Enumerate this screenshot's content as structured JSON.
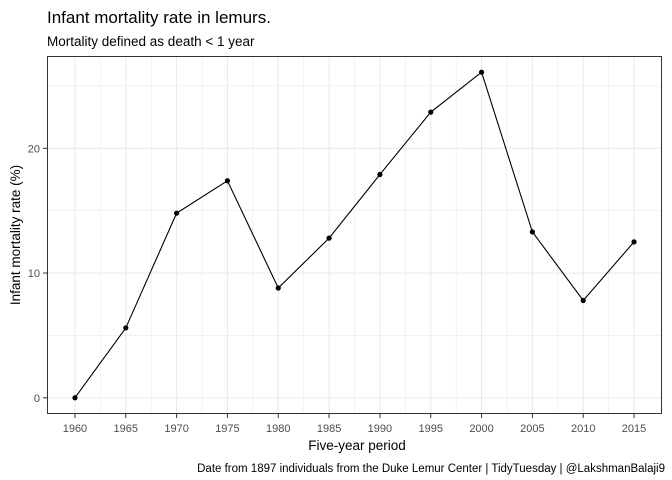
{
  "chart_data": {
    "type": "line",
    "title": "Infant mortality rate in lemurs.",
    "subtitle": "Mortality defined as death < 1 year",
    "xlabel": "Five-year period",
    "ylabel": "Infant mortality rate (%)",
    "caption": "Date from 1897 individuals from the Duke Lemur Center | TidyTuesday | @LakshmanBalaji9",
    "x": [
      1960,
      1965,
      1970,
      1975,
      1980,
      1985,
      1990,
      1995,
      2000,
      2005,
      2010,
      2015
    ],
    "series": [
      {
        "values": [
          0,
          5.6,
          14.8,
          17.4,
          8.8,
          12.8,
          17.9,
          22.9,
          26.1,
          13.3,
          7.8,
          12.5
        ]
      }
    ],
    "x_ticks": [
      "1960",
      "1965",
      "1970",
      "1975",
      "1980",
      "1985",
      "1990",
      "1995",
      "2000",
      "2005",
      "2010",
      "2015"
    ],
    "y_ticks": [
      "0",
      "10",
      "20"
    ],
    "xlim": [
      1957.25,
      2017.75
    ],
    "ylim": [
      -1.3,
      27.4
    ],
    "grid": true,
    "legend": "none",
    "colors": {
      "line": "#000000",
      "points": "#000000",
      "grid": "#ebebeb",
      "panel_border": "#333333",
      "tick_label": "#4d4d4d"
    }
  }
}
